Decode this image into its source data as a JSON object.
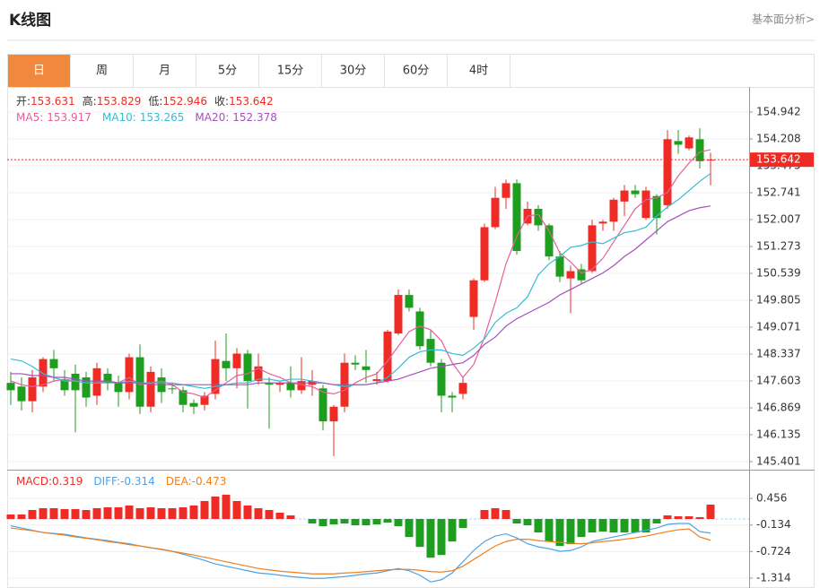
{
  "header": {
    "title": "K线图",
    "link": "基本面分析>"
  },
  "tabs": [
    "日",
    "周",
    "月",
    "5分",
    "15分",
    "30分",
    "60分",
    "4时"
  ],
  "active_tab": 0,
  "chart_data": [
    {
      "type": "candlestick",
      "ohlc_labels": [
        "开:",
        "高:",
        "低:",
        "收:"
      ],
      "up_color": "#ee2b24",
      "down_color": "#1e9e1e",
      "open": [
        147.55,
        147.45,
        147.05,
        147.45,
        148.2,
        147.65,
        147.8,
        147.7,
        147.2,
        147.8,
        147.55,
        147.3,
        148.25,
        146.9,
        147.7,
        147.4,
        147.35,
        147.0,
        146.95,
        147.25,
        148.15,
        147.95,
        148.35,
        147.6,
        147.55,
        147.5,
        147.55,
        147.35,
        147.5,
        147.4,
        146.5,
        146.9,
        148.1,
        148.0,
        147.6,
        147.6,
        148.9,
        149.95,
        149.5,
        148.75,
        148.1,
        147.2,
        147.25,
        149.35,
        150.35,
        151.8,
        152.6,
        153.0,
        151.9,
        152.3,
        151.85,
        151.0,
        150.4,
        150.65,
        150.6,
        151.9,
        151.95,
        152.5,
        152.8,
        152.05,
        152.65,
        152.4,
        154.15,
        153.95,
        154.2,
        153.631
      ],
      "high": [
        147.85,
        147.7,
        147.9,
        148.25,
        148.45,
        147.9,
        148.05,
        147.85,
        148.1,
        147.95,
        147.75,
        148.35,
        148.6,
        148.0,
        147.95,
        147.55,
        147.45,
        147.1,
        147.3,
        148.7,
        148.9,
        148.5,
        148.45,
        148.35,
        147.7,
        147.6,
        148.0,
        148.25,
        147.9,
        147.5,
        146.95,
        148.35,
        148.3,
        148.45,
        147.85,
        149.0,
        150.1,
        150.1,
        149.6,
        149.0,
        148.2,
        147.3,
        147.7,
        150.4,
        151.9,
        152.9,
        153.1,
        153.1,
        152.5,
        152.4,
        151.9,
        151.15,
        150.75,
        150.8,
        152.0,
        152.0,
        152.6,
        152.95,
        152.95,
        152.9,
        152.7,
        154.45,
        154.45,
        154.3,
        154.5,
        153.829
      ],
      "low": [
        146.95,
        146.8,
        146.75,
        147.3,
        147.6,
        147.2,
        146.2,
        146.9,
        146.95,
        147.35,
        146.9,
        147.1,
        146.7,
        146.75,
        147.0,
        147.25,
        146.75,
        146.7,
        146.8,
        147.1,
        147.6,
        147.4,
        146.85,
        147.5,
        146.3,
        147.3,
        147.15,
        147.25,
        147.2,
        146.25,
        145.55,
        146.75,
        147.9,
        147.55,
        147.5,
        147.55,
        148.85,
        149.5,
        148.45,
        148.0,
        146.75,
        146.75,
        147.1,
        149.0,
        150.3,
        151.75,
        152.3,
        151.05,
        151.85,
        151.7,
        150.9,
        150.3,
        149.45,
        150.25,
        150.55,
        151.7,
        151.7,
        152.1,
        152.6,
        152.0,
        151.6,
        152.3,
        153.8,
        153.9,
        153.4,
        152.946
      ],
      "close": [
        147.35,
        147.05,
        147.7,
        148.2,
        147.95,
        147.35,
        147.35,
        147.15,
        147.95,
        147.55,
        147.3,
        148.25,
        146.9,
        147.85,
        147.3,
        147.4,
        146.95,
        146.9,
        147.2,
        148.2,
        147.95,
        148.35,
        147.6,
        148.0,
        147.5,
        147.55,
        147.35,
        147.6,
        147.6,
        146.5,
        146.9,
        148.1,
        148.05,
        147.9,
        147.65,
        148.95,
        149.95,
        149.6,
        148.55,
        148.1,
        147.2,
        147.15,
        147.55,
        150.35,
        151.8,
        152.6,
        153.0,
        151.15,
        152.3,
        151.85,
        151.0,
        150.45,
        150.6,
        150.35,
        151.85,
        151.95,
        152.55,
        152.8,
        152.7,
        152.8,
        152.05,
        154.2,
        154.05,
        154.25,
        153.6,
        153.642
      ],
      "series": [
        {
          "name": "MA5:",
          "color": "#e5609a",
          "values": [
            147.6,
            147.5,
            147.45,
            147.5,
            147.6,
            147.65,
            147.6,
            147.55,
            147.55,
            147.6,
            147.55,
            147.7,
            147.5,
            147.55,
            147.6,
            147.5,
            147.3,
            147.25,
            147.15,
            147.35,
            147.55,
            147.75,
            147.8,
            147.95,
            147.8,
            147.7,
            147.55,
            147.5,
            147.45,
            147.3,
            147.25,
            147.35,
            147.55,
            147.7,
            147.8,
            148.15,
            148.55,
            148.95,
            149.1,
            149.0,
            148.7,
            148.1,
            147.7,
            148.05,
            148.8,
            149.75,
            150.8,
            151.55,
            152.1,
            152.15,
            151.7,
            151.1,
            150.85,
            150.55,
            150.65,
            150.95,
            151.4,
            151.85,
            152.3,
            152.55,
            152.6,
            152.75,
            153.2,
            153.55,
            153.85,
            153.917
          ]
        },
        {
          "name": "MA10:",
          "color": "#35bdd3",
          "values": [
            148.2,
            148.15,
            148.0,
            147.8,
            147.7,
            147.6,
            147.6,
            147.55,
            147.55,
            147.55,
            147.55,
            147.6,
            147.55,
            147.55,
            147.55,
            147.55,
            147.5,
            147.45,
            147.4,
            147.45,
            147.5,
            147.55,
            147.55,
            147.65,
            147.65,
            147.6,
            147.65,
            147.65,
            147.6,
            147.55,
            147.5,
            147.45,
            147.5,
            147.5,
            147.55,
            147.7,
            147.95,
            148.25,
            148.4,
            148.45,
            148.45,
            148.35,
            148.3,
            148.5,
            148.75,
            149.2,
            149.45,
            149.6,
            149.9,
            150.5,
            150.8,
            151.0,
            151.25,
            151.3,
            151.4,
            151.35,
            151.5,
            151.65,
            151.7,
            151.8,
            152.1,
            152.35,
            152.55,
            152.8,
            153.05,
            153.265
          ]
        },
        {
          "name": "MA20:",
          "color": "#a54fc0",
          "values": [
            147.8,
            147.8,
            147.75,
            147.75,
            147.7,
            147.7,
            147.65,
            147.6,
            147.6,
            147.6,
            147.55,
            147.55,
            147.55,
            147.5,
            147.5,
            147.5,
            147.5,
            147.5,
            147.5,
            147.5,
            147.5,
            147.5,
            147.5,
            147.55,
            147.55,
            147.55,
            147.55,
            147.55,
            147.55,
            147.55,
            147.5,
            147.5,
            147.5,
            147.5,
            147.55,
            147.6,
            147.65,
            147.75,
            147.85,
            147.95,
            148.0,
            148.05,
            148.1,
            148.3,
            148.6,
            148.8,
            149.1,
            149.3,
            149.45,
            149.6,
            149.75,
            149.95,
            150.1,
            150.25,
            150.4,
            150.55,
            150.75,
            151.0,
            151.2,
            151.45,
            151.7,
            151.95,
            152.1,
            152.25,
            152.33,
            152.378
          ]
        }
      ],
      "ylim": [
        145.23,
        155.627
      ],
      "yticks": [
        154.942,
        154.208,
        153.475,
        152.741,
        152.007,
        151.273,
        150.539,
        149.805,
        149.071,
        148.337,
        147.603,
        146.869,
        146.135,
        145.401
      ],
      "grid": true
    },
    {
      "type": "macd",
      "histogram": {
        "name": "MACD:",
        "color": "#ee2b24",
        "negative_color": "#1e9e1e",
        "values": [
          0.1,
          0.1,
          0.2,
          0.24,
          0.24,
          0.22,
          0.22,
          0.2,
          0.24,
          0.26,
          0.26,
          0.3,
          0.24,
          0.26,
          0.24,
          0.24,
          0.26,
          0.3,
          0.4,
          0.5,
          0.54,
          0.4,
          0.3,
          0.24,
          0.2,
          0.14,
          0.08,
          0,
          -0.1,
          -0.16,
          -0.12,
          -0.1,
          -0.14,
          -0.14,
          -0.12,
          -0.08,
          -0.16,
          -0.4,
          -0.62,
          -0.86,
          -0.8,
          -0.5,
          -0.2,
          0,
          0.2,
          0.24,
          0.2,
          -0.1,
          -0.14,
          -0.3,
          -0.5,
          -0.6,
          -0.56,
          -0.4,
          -0.3,
          -0.28,
          -0.3,
          -0.3,
          -0.3,
          -0.3,
          -0.1,
          0.08,
          0.06,
          0.06,
          0.04,
          0.319
        ]
      },
      "series": [
        {
          "name": "DIFF:",
          "color": "#4aa3e8",
          "values": [
            -0.15,
            -0.2,
            -0.25,
            -0.3,
            -0.32,
            -0.34,
            -0.38,
            -0.42,
            -0.45,
            -0.48,
            -0.52,
            -0.55,
            -0.6,
            -0.64,
            -0.68,
            -0.72,
            -0.78,
            -0.85,
            -0.92,
            -1.0,
            -1.05,
            -1.1,
            -1.15,
            -1.2,
            -1.22,
            -1.25,
            -1.28,
            -1.3,
            -1.32,
            -1.32,
            -1.3,
            -1.28,
            -1.25,
            -1.22,
            -1.2,
            -1.15,
            -1.1,
            -1.15,
            -1.25,
            -1.4,
            -1.35,
            -1.2,
            -0.95,
            -0.7,
            -0.5,
            -0.38,
            -0.33,
            -0.42,
            -0.55,
            -0.62,
            -0.66,
            -0.72,
            -0.7,
            -0.62,
            -0.5,
            -0.45,
            -0.4,
            -0.35,
            -0.3,
            -0.25,
            -0.2,
            -0.12,
            -0.1,
            -0.1,
            -0.28,
            -0.314
          ]
        },
        {
          "name": "DEA:",
          "color": "#f07f1e",
          "values": [
            -0.2,
            -0.23,
            -0.26,
            -0.3,
            -0.33,
            -0.36,
            -0.4,
            -0.43,
            -0.46,
            -0.5,
            -0.53,
            -0.57,
            -0.6,
            -0.64,
            -0.67,
            -0.72,
            -0.76,
            -0.8,
            -0.85,
            -0.9,
            -0.95,
            -1.0,
            -1.05,
            -1.1,
            -1.13,
            -1.16,
            -1.18,
            -1.2,
            -1.22,
            -1.22,
            -1.22,
            -1.2,
            -1.19,
            -1.17,
            -1.15,
            -1.13,
            -1.12,
            -1.12,
            -1.14,
            -1.17,
            -1.18,
            -1.15,
            -1.05,
            -0.9,
            -0.75,
            -0.6,
            -0.5,
            -0.45,
            -0.45,
            -0.48,
            -0.5,
            -0.52,
            -0.54,
            -0.55,
            -0.53,
            -0.5,
            -0.48,
            -0.45,
            -0.42,
            -0.38,
            -0.33,
            -0.28,
            -0.24,
            -0.22,
            -0.4,
            -0.473
          ]
        }
      ],
      "ylim": [
        -1.514,
        1.036
      ],
      "yticks": [
        0.456,
        -0.134,
        -0.724,
        -1.314
      ],
      "grid": true
    }
  ]
}
